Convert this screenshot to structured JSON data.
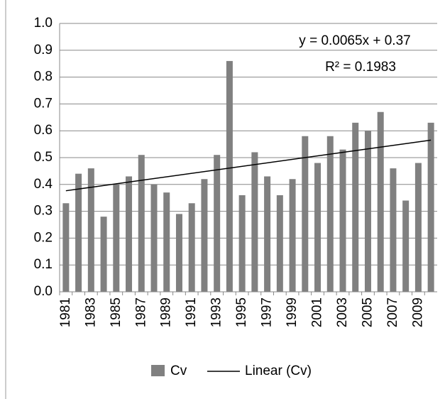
{
  "chart_data": {
    "type": "bar",
    "categories": [
      "1981",
      null,
      "1983",
      null,
      "1985",
      null,
      "1987",
      null,
      "1989",
      null,
      "1991",
      null,
      "1993",
      null,
      "1995",
      null,
      "1997",
      null,
      "1999",
      null,
      "2001",
      null,
      "2003",
      null,
      "2005",
      null,
      "2007",
      null,
      "2009",
      null
    ],
    "series": [
      {
        "name": "Cv",
        "color": "#808080",
        "values": [
          0.33,
          0.44,
          0.46,
          0.28,
          0.4,
          0.43,
          0.51,
          0.4,
          0.37,
          0.29,
          0.33,
          0.42,
          0.51,
          0.86,
          0.36,
          0.52,
          0.43,
          0.36,
          0.42,
          0.58,
          0.48,
          0.58,
          0.53,
          0.63,
          0.6,
          0.67,
          0.46,
          0.34,
          0.48,
          0.63
        ]
      }
    ],
    "trendline": {
      "name": "Linear (Cv)",
      "color": "#000000",
      "equation": "y = 0.0065x + 0.37",
      "r_squared": "R² = 0.1983",
      "slope": 0.0065,
      "intercept": 0.37
    },
    "ylim": [
      0,
      1
    ],
    "yticks": [
      {
        "value": 0,
        "label": "0.0"
      },
      0.1,
      0.2,
      0.3,
      0.4,
      0.5,
      0.6,
      0.7,
      0.8,
      0.9,
      {
        "value": 1,
        "label": "1.0"
      }
    ],
    "grid": true
  }
}
